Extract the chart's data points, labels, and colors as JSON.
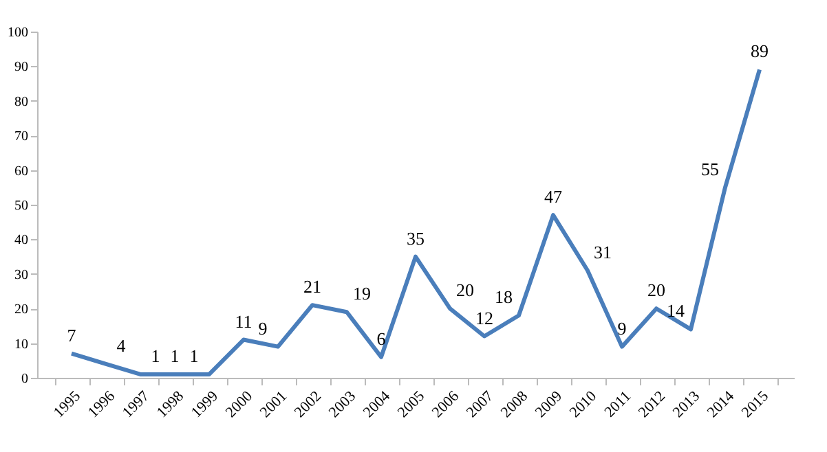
{
  "chart_data": {
    "type": "line",
    "categories": [
      "1995",
      "1996",
      "1997",
      "1998",
      "1999",
      "2000",
      "2001",
      "2002",
      "2003",
      "2004",
      "2005",
      "2006",
      "2007",
      "2008",
      "2009",
      "2010",
      "2011",
      "2012",
      "2013",
      "2014",
      "2015"
    ],
    "series": [
      {
        "color": "#4a7ebb",
        "values": [
          7,
          4,
          1,
          1,
          1,
          11,
          9,
          21,
          19,
          6,
          35,
          20,
          12,
          18,
          47,
          31,
          9,
          20,
          14,
          55,
          89
        ]
      }
    ],
    "ylim": [
      0,
      100
    ],
    "yticks": [
      0,
      10,
      20,
      30,
      40,
      50,
      60,
      70,
      80,
      90,
      100
    ],
    "data_labels": true,
    "grid": false,
    "legend": false,
    "marker": "none",
    "line_style": "solid"
  }
}
